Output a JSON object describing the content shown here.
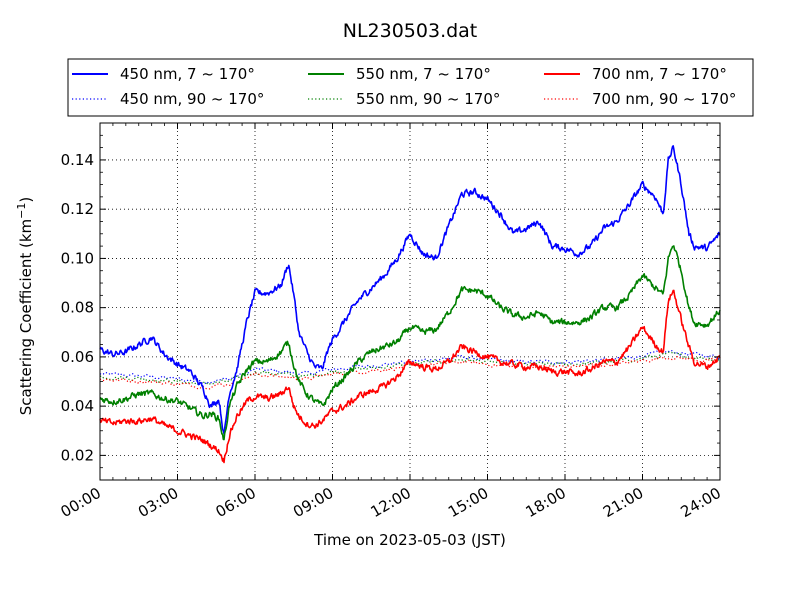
{
  "chart_data": {
    "type": "line",
    "title": "NL230503.dat",
    "xlabel": "Time on 2023-05-03 (JST)",
    "ylabel": "Scattering Coefficient (km",
    "ylabel_sup": "−1",
    "ylabel_close": ")",
    "x_unit": "hours (JST)",
    "xlim": [
      0,
      24
    ],
    "ylim": [
      0.01,
      0.155
    ],
    "x_ticks": [
      0,
      3,
      6,
      9,
      12,
      15,
      18,
      21,
      24
    ],
    "x_tick_labels": [
      "00:00",
      "03:00",
      "06:00",
      "09:00",
      "12:00",
      "15:00",
      "18:00",
      "21:00",
      "24:00"
    ],
    "y_ticks": [
      0.02,
      0.04,
      0.06,
      0.08,
      0.1,
      0.12,
      0.14
    ],
    "y_tick_labels": [
      "0.02",
      "0.04",
      "0.06",
      "0.08",
      "0.10",
      "0.12",
      "0.14"
    ],
    "grid": true,
    "legend_position": "top, outside plot",
    "series": [
      {
        "name": "450 nm, 7 ~ 170°",
        "color": "#0000ff",
        "style": "solid",
        "x": [
          0,
          0.5,
          1,
          1.5,
          2,
          2.5,
          3,
          3.5,
          4,
          4.3,
          4.6,
          4.8,
          5,
          5.3,
          5.7,
          6,
          6.5,
          7,
          7.3,
          7.5,
          7.7,
          8,
          8.3,
          8.6,
          8.8,
          9,
          9.5,
          10,
          10.5,
          11,
          11.5,
          12,
          12.5,
          13,
          13.5,
          14,
          14.5,
          15,
          15.5,
          16,
          16.5,
          17,
          17.5,
          18,
          18.5,
          19,
          19.5,
          20,
          20.5,
          21,
          21.5,
          21.8,
          22,
          22.2,
          22.5,
          22.8,
          23,
          23.5,
          24
        ],
        "y": [
          0.063,
          0.061,
          0.062,
          0.065,
          0.068,
          0.061,
          0.057,
          0.054,
          0.047,
          0.04,
          0.043,
          0.028,
          0.045,
          0.055,
          0.075,
          0.086,
          0.086,
          0.089,
          0.098,
          0.085,
          0.07,
          0.062,
          0.056,
          0.055,
          0.062,
          0.067,
          0.075,
          0.083,
          0.088,
          0.093,
          0.1,
          0.11,
          0.102,
          0.1,
          0.113,
          0.126,
          0.127,
          0.124,
          0.118,
          0.11,
          0.112,
          0.115,
          0.105,
          0.104,
          0.102,
          0.105,
          0.112,
          0.115,
          0.122,
          0.13,
          0.125,
          0.118,
          0.14,
          0.145,
          0.13,
          0.11,
          0.105,
          0.104,
          0.11
        ]
      },
      {
        "name": "550 nm, 7 ~ 170°",
        "color": "#008000",
        "style": "solid",
        "x": [
          0,
          0.5,
          1,
          1.5,
          2,
          2.5,
          3,
          3.5,
          4,
          4.3,
          4.6,
          4.8,
          5,
          5.3,
          5.7,
          6,
          6.5,
          7,
          7.3,
          7.5,
          7.7,
          8,
          8.3,
          8.6,
          8.8,
          9,
          9.5,
          10,
          10.5,
          11,
          11.5,
          12,
          12.5,
          13,
          13.5,
          14,
          14.5,
          15,
          15.5,
          16,
          16.5,
          17,
          17.5,
          18,
          18.5,
          19,
          19.5,
          20,
          20.5,
          21,
          21.5,
          21.8,
          22,
          22.2,
          22.5,
          22.8,
          23,
          23.5,
          24
        ],
        "y": [
          0.043,
          0.042,
          0.043,
          0.045,
          0.045,
          0.043,
          0.042,
          0.039,
          0.036,
          0.037,
          0.035,
          0.026,
          0.04,
          0.048,
          0.055,
          0.058,
          0.058,
          0.062,
          0.066,
          0.057,
          0.05,
          0.045,
          0.042,
          0.04,
          0.043,
          0.047,
          0.052,
          0.058,
          0.062,
          0.064,
          0.066,
          0.072,
          0.07,
          0.071,
          0.078,
          0.087,
          0.087,
          0.085,
          0.08,
          0.077,
          0.076,
          0.078,
          0.074,
          0.074,
          0.074,
          0.076,
          0.08,
          0.08,
          0.085,
          0.093,
          0.088,
          0.085,
          0.1,
          0.106,
          0.095,
          0.08,
          0.074,
          0.073,
          0.079
        ]
      },
      {
        "name": "700 nm, 7 ~ 170°",
        "color": "#ff0000",
        "style": "solid",
        "x": [
          0,
          0.5,
          1,
          1.5,
          2,
          2.5,
          3,
          3.5,
          4,
          4.3,
          4.6,
          4.8,
          5,
          5.3,
          5.7,
          6,
          6.5,
          7,
          7.3,
          7.5,
          7.7,
          8,
          8.3,
          8.6,
          8.8,
          9,
          9.5,
          10,
          10.5,
          11,
          11.5,
          12,
          12.5,
          13,
          13.5,
          14,
          14.5,
          15,
          15.5,
          16,
          16.5,
          17,
          17.5,
          18,
          18.5,
          19,
          19.5,
          20,
          20.5,
          21,
          21.5,
          21.8,
          22,
          22.2,
          22.5,
          22.8,
          23,
          23.5,
          24
        ],
        "y": [
          0.034,
          0.033,
          0.034,
          0.034,
          0.035,
          0.032,
          0.03,
          0.028,
          0.026,
          0.024,
          0.022,
          0.018,
          0.028,
          0.036,
          0.042,
          0.044,
          0.043,
          0.045,
          0.048,
          0.04,
          0.036,
          0.033,
          0.032,
          0.034,
          0.036,
          0.038,
          0.04,
          0.044,
          0.046,
          0.048,
          0.052,
          0.058,
          0.056,
          0.055,
          0.058,
          0.064,
          0.062,
          0.06,
          0.058,
          0.057,
          0.056,
          0.056,
          0.054,
          0.054,
          0.053,
          0.055,
          0.058,
          0.058,
          0.064,
          0.072,
          0.065,
          0.062,
          0.083,
          0.087,
          0.075,
          0.064,
          0.058,
          0.056,
          0.06
        ]
      },
      {
        "name": "450 nm, 90 ~ 170°",
        "color": "#0000ff",
        "style": "dotted",
        "x": [
          0,
          2,
          4,
          5,
          6,
          8,
          9,
          12,
          14,
          16,
          18,
          20,
          22,
          24
        ],
        "y": [
          0.053,
          0.052,
          0.05,
          0.051,
          0.055,
          0.053,
          0.055,
          0.058,
          0.06,
          0.058,
          0.058,
          0.059,
          0.062,
          0.06
        ]
      },
      {
        "name": "550 nm, 90 ~ 170°",
        "color": "#008000",
        "style": "dotted",
        "x": [
          0,
          2,
          4,
          5,
          6,
          8,
          9,
          12,
          14,
          16,
          18,
          20,
          22,
          24
        ],
        "y": [
          0.052,
          0.051,
          0.049,
          0.05,
          0.054,
          0.052,
          0.054,
          0.057,
          0.059,
          0.057,
          0.057,
          0.058,
          0.061,
          0.059
        ]
      },
      {
        "name": "700 nm, 90 ~ 170°",
        "color": "#ff0000",
        "style": "dotted",
        "x": [
          0,
          2,
          4,
          5,
          6,
          8,
          9,
          12,
          14,
          16,
          18,
          20,
          22,
          24
        ],
        "y": [
          0.051,
          0.05,
          0.048,
          0.049,
          0.053,
          0.051,
          0.053,
          0.056,
          0.058,
          0.056,
          0.056,
          0.057,
          0.06,
          0.058
        ]
      }
    ]
  }
}
